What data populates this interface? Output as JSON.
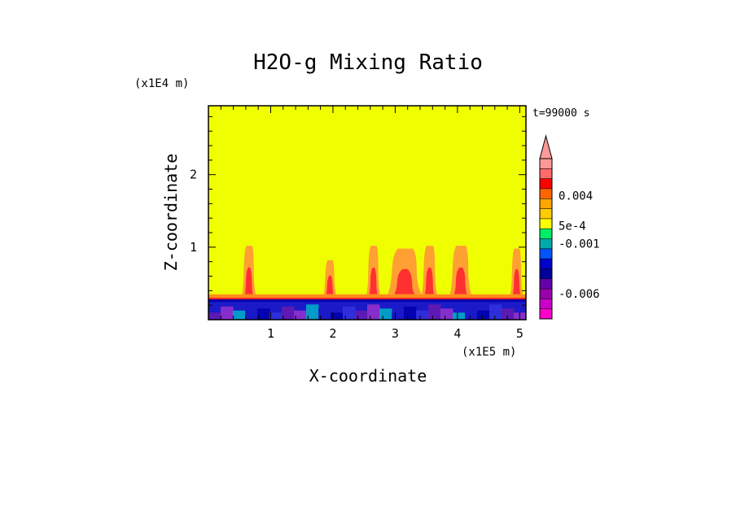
{
  "chart_data": {
    "type": "heatmap",
    "title": "H2O-g Mixing Ratio",
    "xlabel": "X-coordinate",
    "ylabel": "Z-coordinate",
    "x_scale_label": "(x1E5 m)",
    "y_scale_label": "(x1E4 m)",
    "time_label": "t=99000 s",
    "xlim": [
      0,
      5.1
    ],
    "ylim": [
      0,
      2.95
    ],
    "x_ticks": [
      1,
      2,
      3,
      4,
      5
    ],
    "x_tick_labels": [
      "1",
      "2",
      "3",
      "4",
      "5"
    ],
    "y_ticks": [
      1,
      2
    ],
    "y_tick_labels": [
      "1",
      "2"
    ],
    "background_level_color": "#f0ff00",
    "colorbar": {
      "levels": [
        {
          "color": "#ff00cc"
        },
        {
          "color": "#cc00cc"
        },
        {
          "color": "#9900aa"
        },
        {
          "color": "#6600aa"
        },
        {
          "color": "#000099"
        },
        {
          "color": "#0000cc"
        },
        {
          "color": "#0055ff"
        },
        {
          "color": "#00aaaa"
        },
        {
          "color": "#00ee66"
        },
        {
          "color": "#ffff00"
        },
        {
          "color": "#ffcc00"
        },
        {
          "color": "#ffa500"
        },
        {
          "color": "#ff6600"
        },
        {
          "color": "#ff0000"
        },
        {
          "color": "#ff6a6a"
        },
        {
          "color": "#ff9999"
        }
      ],
      "labels": [
        {
          "text": "-0.006",
          "level_index": 2.5
        },
        {
          "text": "-0.001",
          "level_index": 7.5
        },
        {
          "text": "5e-4",
          "level_index": 9.3
        },
        {
          "text": "0.004",
          "level_index": 12.3
        }
      ]
    },
    "features": {
      "surface_layer": {
        "z_top": 0.28,
        "colors": [
          "#1a1ac8",
          "#0000aa",
          "#3333dd",
          "#6a1ab0",
          "#9933cc",
          "#00b4c8"
        ]
      },
      "boundary_layer": {
        "z_top": 0.35,
        "color": "#ff8c1a"
      },
      "plumes": [
        {
          "x": 0.65,
          "z_top": 1.02,
          "width": 0.22
        },
        {
          "x": 1.95,
          "z_top": 0.82,
          "width": 0.2
        },
        {
          "x": 2.65,
          "z_top": 1.02,
          "width": 0.22
        },
        {
          "x": 3.15,
          "z_top": 0.98,
          "width": 0.55
        },
        {
          "x": 3.55,
          "z_top": 1.02,
          "width": 0.25
        },
        {
          "x": 4.05,
          "z_top": 1.02,
          "width": 0.35
        },
        {
          "x": 4.95,
          "z_top": 0.98,
          "width": 0.2
        }
      ]
    }
  }
}
